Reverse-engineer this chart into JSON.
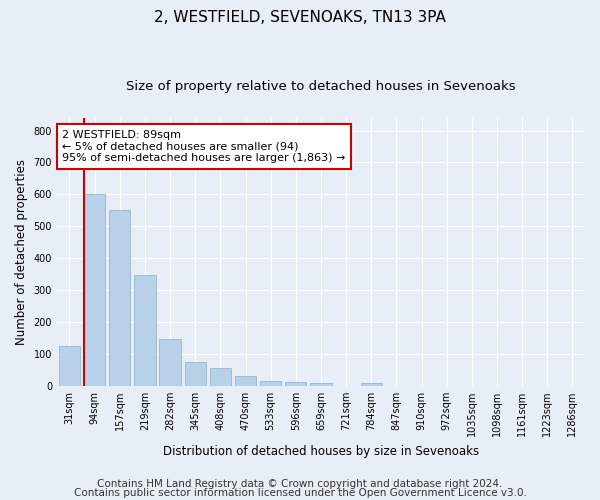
{
  "title": "2, WESTFIELD, SEVENOAKS, TN13 3PA",
  "subtitle": "Size of property relative to detached houses in Sevenoaks",
  "xlabel": "Distribution of detached houses by size in Sevenoaks",
  "ylabel": "Number of detached properties",
  "categories": [
    "31sqm",
    "94sqm",
    "157sqm",
    "219sqm",
    "282sqm",
    "345sqm",
    "408sqm",
    "470sqm",
    "533sqm",
    "596sqm",
    "659sqm",
    "721sqm",
    "784sqm",
    "847sqm",
    "910sqm",
    "972sqm",
    "1035sqm",
    "1098sqm",
    "1161sqm",
    "1223sqm",
    "1286sqm"
  ],
  "values": [
    125,
    600,
    550,
    347,
    148,
    75,
    55,
    32,
    15,
    13,
    10,
    0,
    8,
    0,
    0,
    0,
    0,
    0,
    0,
    0,
    0
  ],
  "bar_color": "#b8d0e8",
  "bar_edge_color": "#8aafc8",
  "annotation_line1": "2 WESTFIELD: 89sqm",
  "annotation_line2": "← 5% of detached houses are smaller (94)",
  "annotation_line3": "95% of semi-detached houses are larger (1,863) →",
  "annotation_box_facecolor": "#ffffff",
  "annotation_box_edgecolor": "#cc0000",
  "vline_color": "#cc0000",
  "vline_x": 0.575,
  "ylim": [
    0,
    840
  ],
  "yticks": [
    0,
    100,
    200,
    300,
    400,
    500,
    600,
    700,
    800
  ],
  "footer1": "Contains HM Land Registry data © Crown copyright and database right 2024.",
  "footer2": "Contains public sector information licensed under the Open Government Licence v3.0.",
  "background_color": "#e8eef5",
  "plot_bg_color": "#e8eef5",
  "grid_color": "#ffffff",
  "title_fontsize": 11,
  "subtitle_fontsize": 9.5,
  "axis_label_fontsize": 8.5,
  "tick_fontsize": 7,
  "footer_fontsize": 7.5,
  "annotation_fontsize": 8
}
